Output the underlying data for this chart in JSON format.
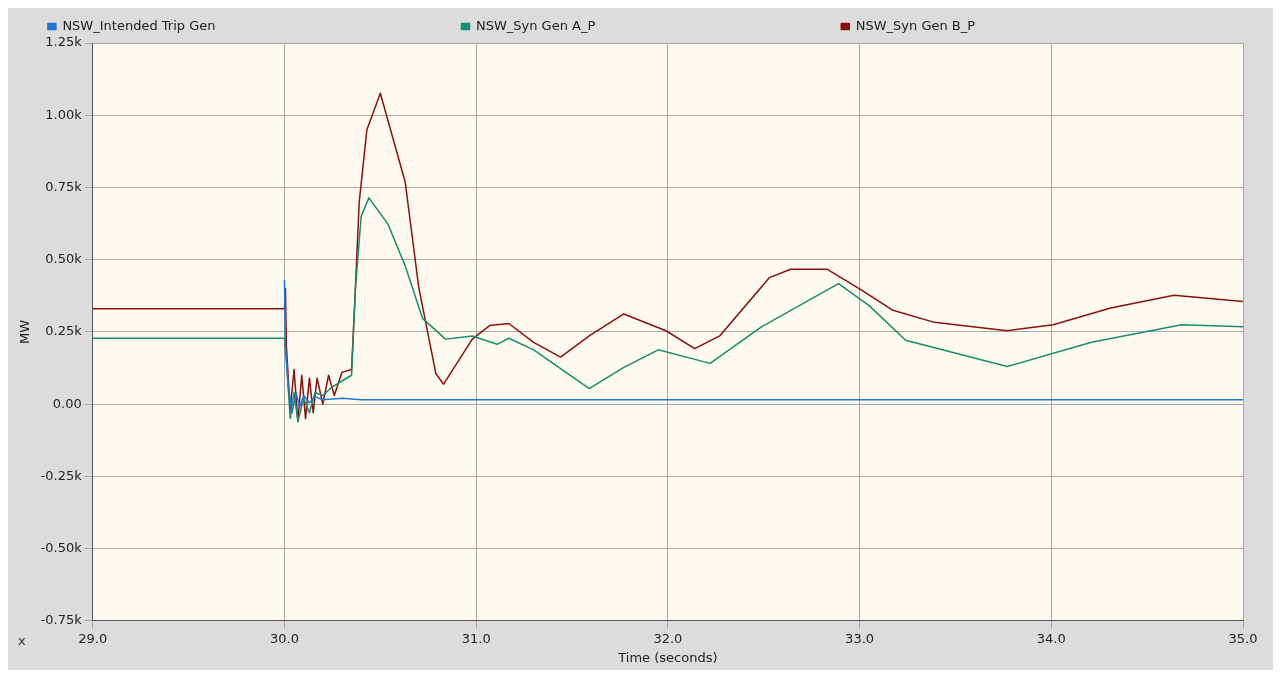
{
  "chart_data": {
    "type": "line",
    "xlabel": "Time (seconds)",
    "ylabel": "MW",
    "annotations": [
      "x"
    ],
    "legend": "top",
    "grid": true,
    "marker": "none",
    "line_style": "solid",
    "xlim": [
      29,
      35
    ],
    "xticks": [
      {
        "value": 29,
        "label": "29.0"
      },
      {
        "value": 30,
        "label": "30.0"
      },
      {
        "value": 31,
        "label": "31.0"
      },
      {
        "value": 32,
        "label": "32.0"
      },
      {
        "value": 33,
        "label": "33.0"
      },
      {
        "value": 34,
        "label": "34.0"
      },
      {
        "value": 35,
        "label": "35.0"
      }
    ],
    "ylim": [
      -750,
      1250
    ],
    "yticks": [
      {
        "value": -750,
        "label": "-0.75k"
      },
      {
        "value": -500,
        "label": "-0.50k"
      },
      {
        "value": -250,
        "label": "-0.25k"
      },
      {
        "value": 0,
        "label": "0.00"
      },
      {
        "value": 250,
        "label": "0.25k"
      },
      {
        "value": 500,
        "label": "0.50k"
      },
      {
        "value": 750,
        "label": "0.75k"
      },
      {
        "value": 1000,
        "label": "1.00k"
      },
      {
        "value": 1250,
        "label": "1.25k"
      }
    ],
    "series": [
      {
        "name": "NSW_Intended Trip Gen",
        "color": "#1e78d2",
        "x": [
          30.0,
          30.005,
          30.02,
          30.04,
          30.06,
          30.08,
          30.1,
          30.13,
          30.16,
          30.2,
          30.3,
          30.4,
          31.0,
          32.0,
          33.0,
          34.0,
          35.0
        ],
        "values": [
          430,
          200,
          60,
          -30,
          40,
          -10,
          30,
          5,
          25,
          15,
          20,
          15,
          15,
          15,
          15,
          15,
          15
        ]
      },
      {
        "name": "NSW_Syn Gen A_P",
        "color": "#1a8c6e",
        "x": [
          29.0,
          30.0,
          30.01,
          30.03,
          30.05,
          30.07,
          30.1,
          30.13,
          30.16,
          30.2,
          30.25,
          30.3,
          30.35,
          30.37,
          30.4,
          30.44,
          30.54,
          30.63,
          30.72,
          30.84,
          30.98,
          31.11,
          31.17,
          31.3,
          31.59,
          31.77,
          31.95,
          32.22,
          32.49,
          32.89,
          33.05,
          33.24,
          33.77,
          34.21,
          34.68,
          35.0
        ],
        "values": [
          228,
          228,
          150,
          -50,
          40,
          -60,
          20,
          -30,
          40,
          30,
          60,
          80,
          100,
          400,
          650,
          714,
          623,
          478,
          297,
          225,
          236,
          207,
          228,
          188,
          54,
          127,
          188,
          141,
          268,
          417,
          341,
          221,
          130,
          214,
          275,
          268
        ]
      },
      {
        "name": "NSW_Syn Gen B_P",
        "color": "#8b1010",
        "x": [
          29.0,
          30.0,
          30.005,
          30.01,
          30.03,
          30.05,
          30.07,
          30.09,
          30.11,
          30.13,
          30.15,
          30.17,
          30.2,
          30.23,
          30.26,
          30.3,
          30.35,
          30.37,
          30.39,
          30.43,
          30.5,
          30.63,
          30.7,
          30.79,
          30.83,
          30.98,
          31.07,
          31.17,
          31.3,
          31.44,
          31.59,
          31.77,
          31.99,
          32.14,
          32.27,
          32.53,
          32.64,
          32.83,
          33.0,
          33.17,
          33.39,
          33.77,
          34.01,
          34.31,
          34.64,
          35.0
        ],
        "values": [
          330,
          330,
          400,
          200,
          -20,
          120,
          -60,
          100,
          -50,
          90,
          -30,
          90,
          0,
          100,
          30,
          110,
          120,
          400,
          700,
          950,
          1076,
          768,
          406,
          105,
          69,
          225,
          272,
          279,
          214,
          163,
          236,
          312,
          254,
          192,
          236,
          438,
          467,
          467,
          399,
          326,
          283,
          254,
          275,
          333,
          377,
          355
        ]
      }
    ]
  }
}
